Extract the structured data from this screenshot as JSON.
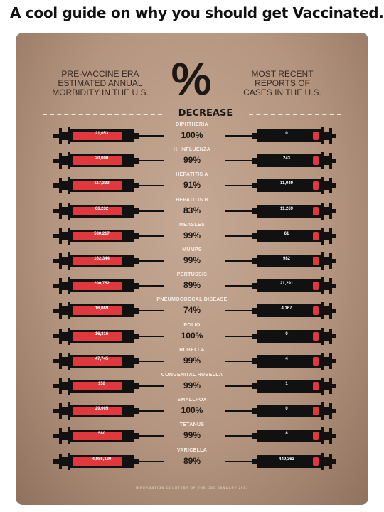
{
  "post": {
    "title": "A cool guide on why you should get Vaccinated."
  },
  "infographic": {
    "left_header": [
      "PRE-VACCINE ERA",
      "ESTIMATED ANNUAL",
      "MORBIDITY IN THE U.S."
    ],
    "center_symbol": "%",
    "right_header": [
      "MOST RECENT",
      "REPORTS OF",
      "CASES IN THE U.S."
    ],
    "decrease_label": "DECREASE",
    "credit": "INFORMATION COURTESY OF THE CDC JANUARY 2017",
    "colors": {
      "background": "#b49580",
      "syringe_red": "#e0383c",
      "syringe_black": "#111111"
    },
    "rows": [
      {
        "disease": "DIPHTHERIA",
        "pre": "21,053",
        "recent": "0",
        "decrease": "100%"
      },
      {
        "disease": "H. INFLUENZA",
        "pre": "20,000",
        "recent": "243",
        "decrease": "99%"
      },
      {
        "disease": "HEPATITIS A",
        "pre": "117,333",
        "recent": "11,049",
        "decrease": "91%"
      },
      {
        "disease": "HEPATITIS B",
        "pre": "66,232",
        "recent": "11,269",
        "decrease": "83%"
      },
      {
        "disease": "MEASLES",
        "pre": "530,217",
        "recent": "61",
        "decrease": "99%"
      },
      {
        "disease": "MUMPS",
        "pre": "162,344",
        "recent": "982",
        "decrease": "99%"
      },
      {
        "disease": "PERTUSSIS",
        "pre": "200,752",
        "recent": "21,291",
        "decrease": "89%"
      },
      {
        "disease": "PNEUMOCOCCAL DISEASE",
        "pre": "16,069",
        "recent": "4,167",
        "decrease": "74%"
      },
      {
        "disease": "POLIO",
        "pre": "16,316",
        "recent": "0",
        "decrease": "100%"
      },
      {
        "disease": "RUBELLA",
        "pre": "47,745",
        "recent": "4",
        "decrease": "99%"
      },
      {
        "disease": "CONGENITAL RUBELLA",
        "pre": "152",
        "recent": "1",
        "decrease": "99%"
      },
      {
        "disease": "SMALLPOX",
        "pre": "29,005",
        "recent": "0",
        "decrease": "100%"
      },
      {
        "disease": "TETANUS",
        "pre": "580",
        "recent": "8",
        "decrease": "99%"
      },
      {
        "disease": "VARICELLA",
        "pre": "4,085,120",
        "recent": "449,363",
        "decrease": "89%"
      }
    ]
  }
}
